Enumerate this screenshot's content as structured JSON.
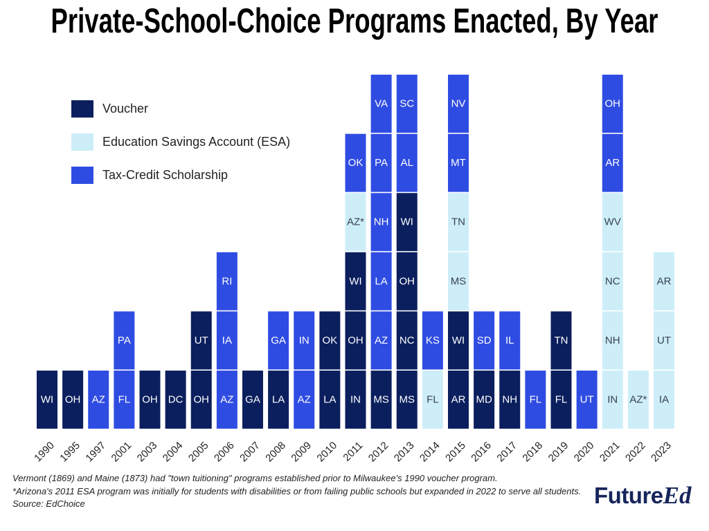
{
  "chart_data": {
    "type": "bar",
    "stacked": true,
    "title": "Private-School-Choice Programs Enacted, By Year",
    "xlabel": "",
    "ylabel": "",
    "legend": "top-left",
    "grid": false,
    "series": [
      {
        "name": "Voucher",
        "color": "#0b1f5e",
        "label_color": "#ffffff"
      },
      {
        "name": "Education Savings Account (ESA)",
        "color": "#cdeef9",
        "label_color": "#38424f"
      },
      {
        "name": "Tax-Credit Scholarship",
        "color": "#2f4ce2",
        "label_color": "#ffffff"
      }
    ],
    "categories": [
      "1990",
      "1995",
      "1997",
      "2001",
      "2003",
      "2004",
      "2005",
      "2006",
      "2007",
      "2008",
      "2009",
      "2010",
      "2011",
      "2012",
      "2013",
      "2014",
      "2015",
      "2016",
      "2017",
      "2018",
      "2019",
      "2020",
      "2021",
      "2022",
      "2023"
    ],
    "stacks": [
      [
        {
          "state": "WI",
          "series": 0
        }
      ],
      [
        {
          "state": "OH",
          "series": 0
        }
      ],
      [
        {
          "state": "AZ",
          "series": 2
        }
      ],
      [
        {
          "state": "FL",
          "series": 2
        },
        {
          "state": "PA",
          "series": 2
        }
      ],
      [
        {
          "state": "OH",
          "series": 0
        }
      ],
      [
        {
          "state": "DC",
          "series": 0
        }
      ],
      [
        {
          "state": "OH",
          "series": 0
        },
        {
          "state": "UT",
          "series": 0
        }
      ],
      [
        {
          "state": "AZ",
          "series": 2
        },
        {
          "state": "IA",
          "series": 2
        },
        {
          "state": "RI",
          "series": 2
        }
      ],
      [
        {
          "state": "GA",
          "series": 0
        }
      ],
      [
        {
          "state": "LA",
          "series": 0
        },
        {
          "state": "GA",
          "series": 2
        }
      ],
      [
        {
          "state": "AZ",
          "series": 2
        },
        {
          "state": "IN",
          "series": 2
        }
      ],
      [
        {
          "state": "LA",
          "series": 0
        },
        {
          "state": "OK",
          "series": 0
        }
      ],
      [
        {
          "state": "IN",
          "series": 0
        },
        {
          "state": "OH",
          "series": 0
        },
        {
          "state": "WI",
          "series": 0
        },
        {
          "state": "AZ*",
          "series": 1
        },
        {
          "state": "OK",
          "series": 2
        }
      ],
      [
        {
          "state": "MS",
          "series": 0
        },
        {
          "state": "AZ",
          "series": 2
        },
        {
          "state": "LA",
          "series": 2
        },
        {
          "state": "NH",
          "series": 2
        },
        {
          "state": "PA",
          "series": 2
        },
        {
          "state": "VA",
          "series": 2
        }
      ],
      [
        {
          "state": "MS",
          "series": 0
        },
        {
          "state": "NC",
          "series": 0
        },
        {
          "state": "OH",
          "series": 0
        },
        {
          "state": "WI",
          "series": 0
        },
        {
          "state": "AL",
          "series": 2
        },
        {
          "state": "SC",
          "series": 2
        }
      ],
      [
        {
          "state": "FL",
          "series": 1
        },
        {
          "state": "KS",
          "series": 2
        }
      ],
      [
        {
          "state": "AR",
          "series": 0
        },
        {
          "state": "WI",
          "series": 0
        },
        {
          "state": "MS",
          "series": 1
        },
        {
          "state": "TN",
          "series": 1
        },
        {
          "state": "MT",
          "series": 2
        },
        {
          "state": "NV",
          "series": 2
        }
      ],
      [
        {
          "state": "MD",
          "series": 0
        },
        {
          "state": "SD",
          "series": 2
        }
      ],
      [
        {
          "state": "NH",
          "series": 0
        },
        {
          "state": "IL",
          "series": 2
        }
      ],
      [
        {
          "state": "FL",
          "series": 2
        }
      ],
      [
        {
          "state": "FL",
          "series": 0
        },
        {
          "state": "TN",
          "series": 0
        }
      ],
      [
        {
          "state": "UT",
          "series": 2
        }
      ],
      [
        {
          "state": "IN",
          "series": 1
        },
        {
          "state": "NH",
          "series": 1
        },
        {
          "state": "NC",
          "series": 1
        },
        {
          "state": "WV",
          "series": 1
        },
        {
          "state": "AR",
          "series": 2
        },
        {
          "state": "OH",
          "series": 2
        }
      ],
      [
        {
          "state": "AZ*",
          "series": 1
        }
      ],
      [
        {
          "state": "IA",
          "series": 1
        },
        {
          "state": "UT",
          "series": 1
        },
        {
          "state": "AR",
          "series": 1
        }
      ]
    ]
  },
  "footnotes": [
    "Vermont (1869) and Maine (1873) had \"town tuitioning\" programs established prior to Milwaukee's 1990 voucher program.",
    "*Arizona's 2011 ESA program was initially for students with disabilities or from failing public schools but expanded in 2022 to serve all students.",
    "Source: EdChoice"
  ],
  "logo": {
    "part1": "Future",
    "part2": "Ed"
  }
}
